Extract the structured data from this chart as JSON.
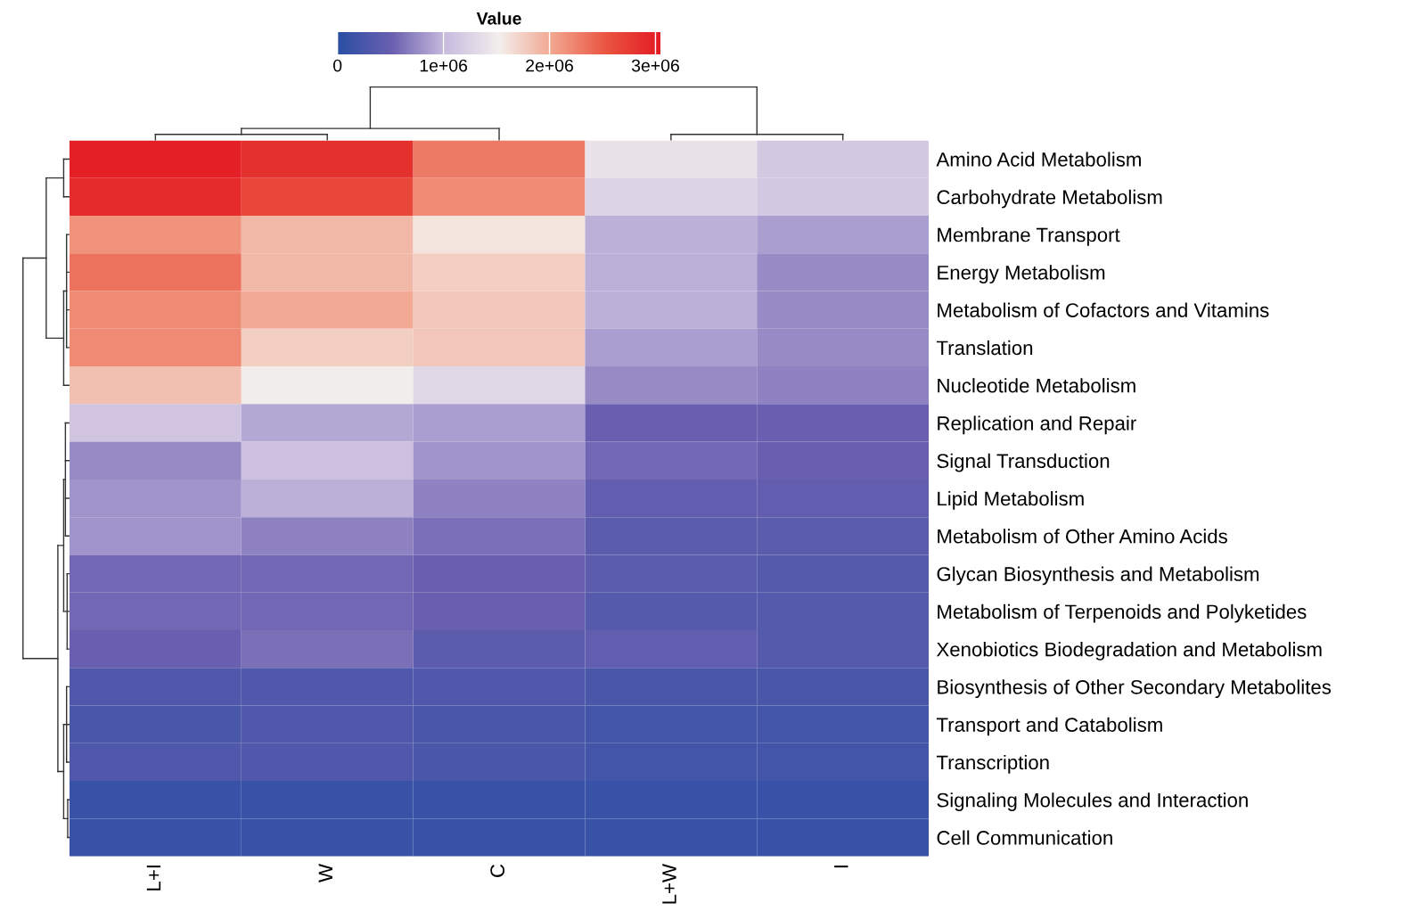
{
  "chart_data": {
    "type": "heatmap",
    "clabel": "Value",
    "categories": [
      "L+I",
      "W",
      "C",
      "L+W",
      "I"
    ],
    "y_categories": [
      "Amino Acid Metabolism",
      "Carbohydrate Metabolism",
      "Membrane Transport",
      "Energy Metabolism",
      "Metabolism of Cofactors and Vitamins",
      "Translation",
      "Nucleotide Metabolism",
      "Replication and Repair",
      "Signal Transduction",
      "Lipid Metabolism",
      "Metabolism of Other Amino Acids",
      "Glycan Biosynthesis and Metabolism",
      "Metabolism of Terpenoids and Polyketides",
      "Xenobiotics Biodegradation and Metabolism",
      "Biosynthesis of Other Secondary Metabolites",
      "Transport and Catabolism",
      "Transcription",
      "Signaling Molecules and Interaction",
      "Cell Communication"
    ],
    "cells": [
      [
        3000000,
        2850000,
        2300000,
        1400000,
        1150000
      ],
      [
        2900000,
        2650000,
        2200000,
        1250000,
        1150000
      ],
      [
        2150000,
        1900000,
        1600000,
        950000,
        850000
      ],
      [
        2350000,
        1900000,
        1750000,
        950000,
        750000
      ],
      [
        2200000,
        2000000,
        1800000,
        950000,
        750000
      ],
      [
        2200000,
        1750000,
        1800000,
        850000,
        750000
      ],
      [
        1850000,
        1500000,
        1300000,
        750000,
        700000
      ],
      [
        1100000,
        900000,
        850000,
        500000,
        500000
      ],
      [
        750000,
        1050000,
        800000,
        550000,
        500000
      ],
      [
        800000,
        950000,
        700000,
        450000,
        450000
      ],
      [
        800000,
        700000,
        600000,
        400000,
        400000
      ],
      [
        550000,
        550000,
        500000,
        400000,
        350000
      ],
      [
        550000,
        550000,
        500000,
        350000,
        350000
      ],
      [
        500000,
        600000,
        400000,
        450000,
        350000
      ],
      [
        300000,
        300000,
        300000,
        250000,
        250000
      ],
      [
        250000,
        300000,
        250000,
        200000,
        200000
      ],
      [
        300000,
        300000,
        250000,
        200000,
        200000
      ],
      [
        100000,
        100000,
        100000,
        100000,
        100000
      ],
      [
        100000,
        100000,
        100000,
        100000,
        100000
      ]
    ],
    "clim": [
      0,
      3050000
    ],
    "cticks": [
      {
        "value": 0,
        "label": "0"
      },
      {
        "value": 1000000,
        "label": "1e+06"
      },
      {
        "value": 2000000,
        "label": "2e+06"
      },
      {
        "value": 3000000,
        "label": "3e+06"
      }
    ]
  }
}
